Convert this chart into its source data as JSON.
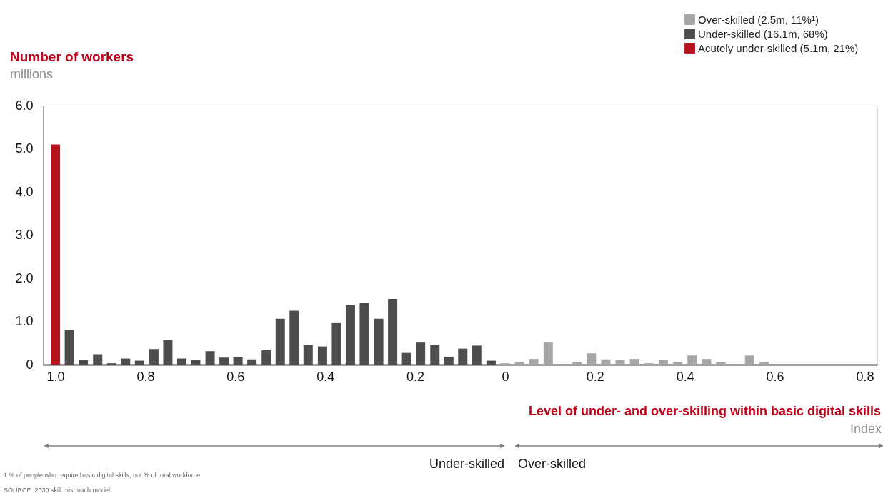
{
  "chart_data": {
    "type": "bar",
    "title": "Number of workers",
    "subtitle": "millions",
    "xlabel": "Level of under- and over-skilling within basic digital skills",
    "annotations": [
      "Index",
      "Under-skilled",
      "Over-skilled",
      "1 % of people who require basic digital skills, not % of total workforce",
      "SOURCE: 2030 skill mismatch model"
    ],
    "series": [
      {
        "name": "Over-skilled (2.5m, 11%¹)",
        "color": "#a6a6a6",
        "x": [
          0,
          0.032,
          0.064,
          0.096,
          0.16,
          0.192,
          0.224,
          0.256,
          0.288,
          0.32,
          0.352,
          0.384,
          0.416,
          0.448,
          0.48,
          0.544,
          0.576
        ],
        "values": [
          0.03,
          0.06,
          0.13,
          0.51,
          0.05,
          0.26,
          0.12,
          0.1,
          0.13,
          0.03,
          0.1,
          0.06,
          0.21,
          0.13,
          0.05,
          0.21,
          0.05
        ]
      },
      {
        "name": "Under-skilled (16.1m, 68%)",
        "color": "#4d4d4d",
        "x": [
          -0.969,
          -0.938,
          -0.906,
          -0.875,
          -0.844,
          -0.813,
          -0.781,
          -0.75,
          -0.719,
          -0.688,
          -0.656,
          -0.625,
          -0.594,
          -0.563,
          -0.531,
          -0.5,
          -0.469,
          -0.438,
          -0.406,
          -0.375,
          -0.344,
          -0.313,
          -0.281,
          -0.25,
          -0.219,
          -0.188,
          -0.156,
          -0.125,
          -0.094,
          -0.063,
          -0.031
        ],
        "values": [
          0.8,
          0.1,
          0.24,
          0.03,
          0.14,
          0.09,
          0.36,
          0.57,
          0.14,
          0.1,
          0.31,
          0.16,
          0.18,
          0.12,
          0.33,
          1.06,
          1.25,
          0.45,
          0.42,
          0.96,
          1.38,
          1.43,
          1.06,
          1.52,
          0.27,
          0.51,
          0.46,
          0.18,
          0.37,
          0.44,
          0.09
        ]
      },
      {
        "name": "Acutely under-skilled (5.1m, 21%)",
        "color": "#b5121b",
        "x": [
          -1
        ],
        "values": [
          5.1
        ]
      }
    ],
    "xlim": [
      -1.02,
      0.82
    ],
    "xticks": [
      {
        "value": -1,
        "label": "1.0"
      },
      {
        "value": -0.8,
        "label": "0.8"
      },
      {
        "value": -0.6,
        "label": "0.6"
      },
      {
        "value": -0.4,
        "label": "0.4"
      },
      {
        "value": -0.2,
        "label": "0.2"
      },
      0,
      0.2,
      0.4,
      0.6,
      0.8
    ],
    "ylim": [
      0,
      6
    ],
    "yticks": [
      0,
      {
        "value": 1,
        "label": "1.0"
      },
      {
        "value": 2,
        "label": "2.0"
      },
      {
        "value": 3,
        "label": "3.0"
      },
      {
        "value": 4,
        "label": "4.0"
      },
      {
        "value": 5,
        "label": "5.0"
      },
      {
        "value": 6,
        "label": "6.0"
      }
    ],
    "grid": false,
    "legend": "top right"
  }
}
